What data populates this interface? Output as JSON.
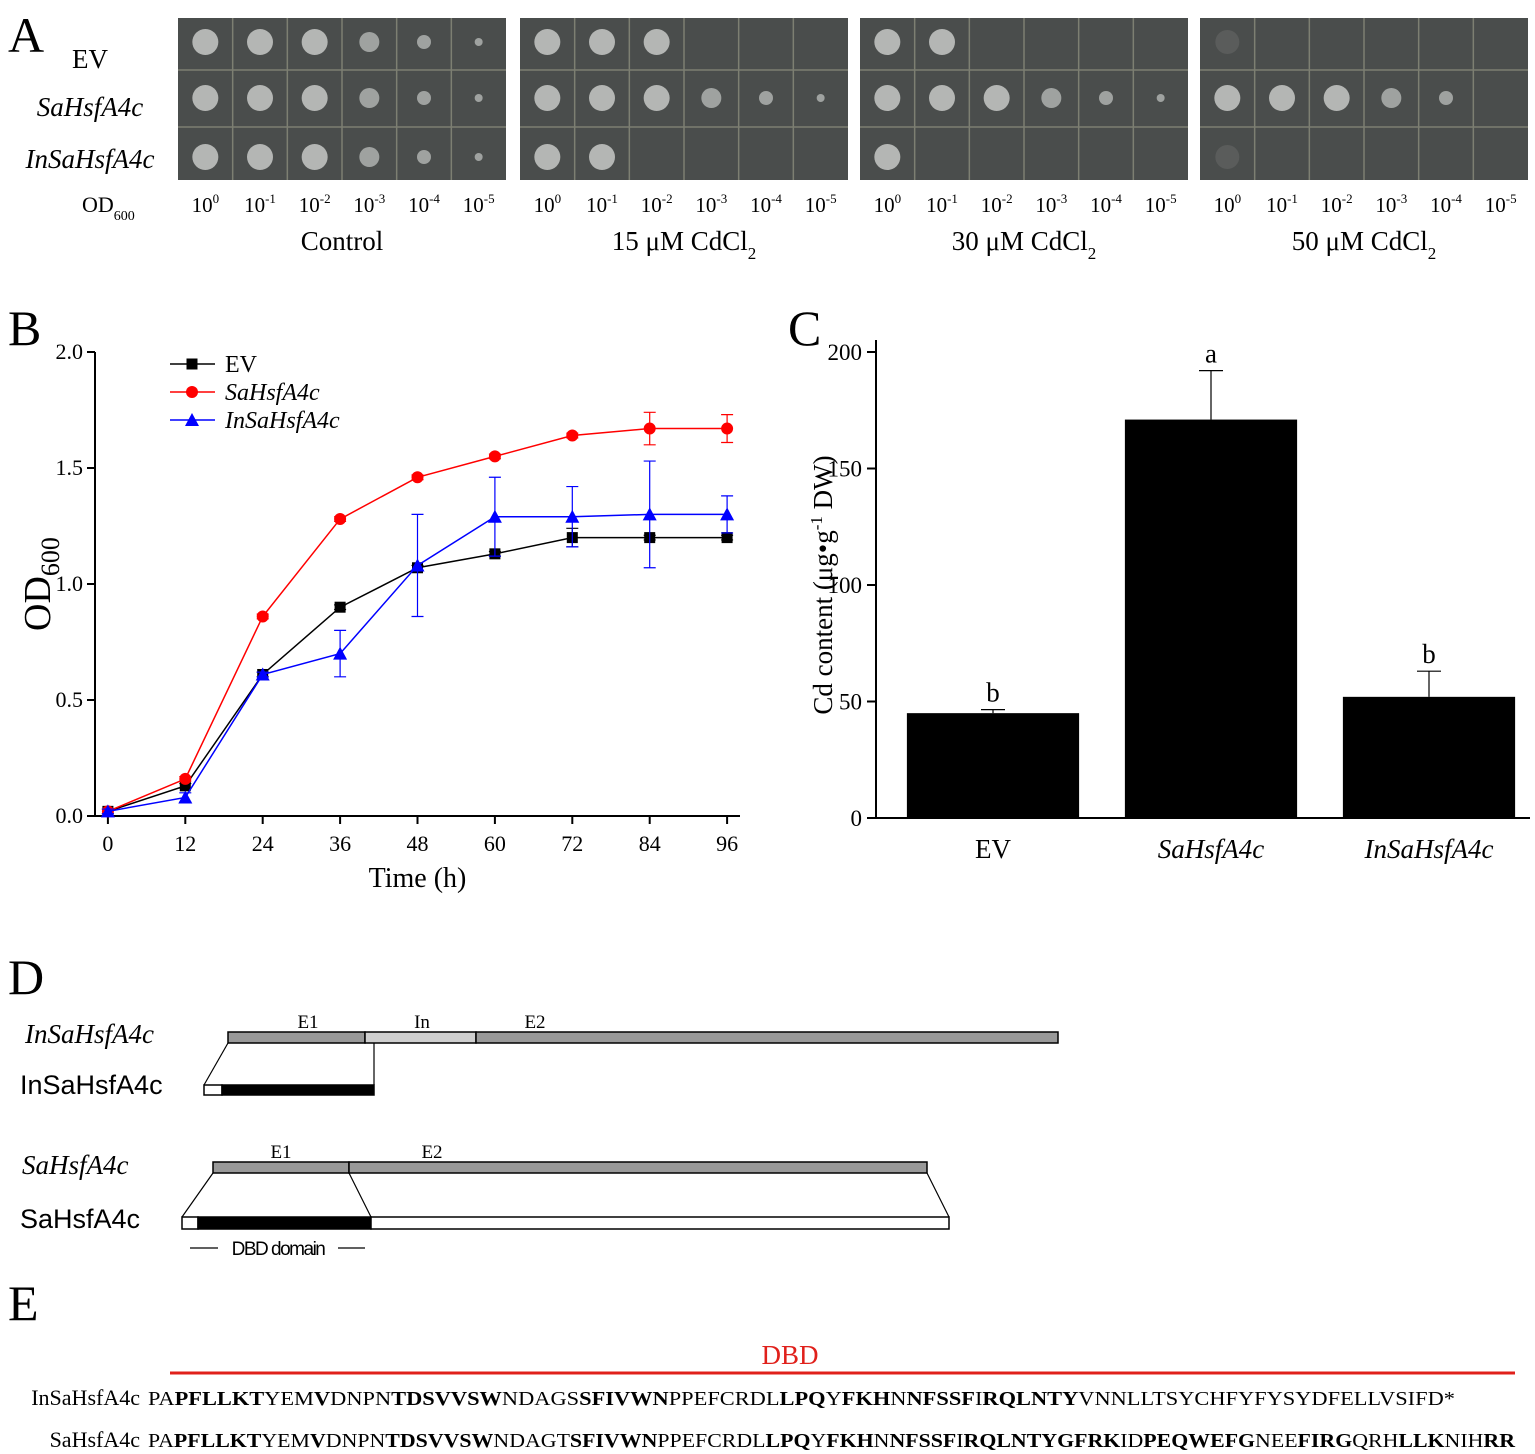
{
  "panel_a": {
    "label": "A",
    "rows": [
      {
        "text": "EV",
        "italic": false
      },
      {
        "text": "SaHsfA4c",
        "italic": true
      },
      {
        "text": "InSaHsfA4c",
        "italic": true
      }
    ],
    "od_label": {
      "main": "OD",
      "sub": "600"
    },
    "dilutions": [
      {
        "base": "10",
        "exp": "0"
      },
      {
        "base": "10",
        "exp": "-1"
      },
      {
        "base": "10",
        "exp": "-2"
      },
      {
        "base": "10",
        "exp": "-3"
      },
      {
        "base": "10",
        "exp": "-4"
      },
      {
        "base": "10",
        "exp": "-5"
      }
    ],
    "conditions": [
      {
        "text": "Control"
      },
      {
        "text": "15 μM CdCl",
        "sub": "2"
      },
      {
        "text": "30 μM CdCl",
        "sub": "2"
      },
      {
        "text": "50 μM CdCl",
        "sub": "2"
      }
    ]
  },
  "chart_data": [
    {
      "panel": "B",
      "type": "line",
      "x": [
        0,
        12,
        24,
        36,
        48,
        60,
        72,
        84,
        96
      ],
      "xlim": [
        -2,
        98
      ],
      "xticks": [
        0,
        12,
        24,
        36,
        48,
        60,
        72,
        84,
        96
      ],
      "ylim": [
        0,
        2
      ],
      "yticks": [
        {
          "value": 0,
          "label": "0.0"
        },
        0.5,
        {
          "value": 1,
          "label": "1.0"
        },
        1.5,
        {
          "value": 2,
          "label": "2.0"
        }
      ],
      "xlabel": "Time (h)",
      "ylabel": {
        "main": "OD",
        "sub": "600"
      },
      "grid": false,
      "legend": "top-left",
      "series": [
        {
          "name": "EV",
          "italic": false,
          "color": "#000000",
          "marker": "square",
          "values": [
            0.02,
            0.13,
            0.61,
            0.9,
            1.07,
            1.13,
            1.2,
            1.2,
            1.2
          ],
          "errors": [
            0.01,
            0.01,
            0.01,
            0.01,
            0.01,
            0.01,
            0.04,
            0.01,
            0.01
          ]
        },
        {
          "name": "SaHsfA4c",
          "italic": true,
          "color": "#ff0000",
          "marker": "circle",
          "values": [
            0.02,
            0.16,
            0.86,
            1.28,
            1.46,
            1.55,
            1.64,
            1.67,
            1.67
          ],
          "errors": [
            0.01,
            0.01,
            0.01,
            0.01,
            0.01,
            0.01,
            0.01,
            0.07,
            0.06
          ]
        },
        {
          "name": "InSaHsfA4c",
          "italic": true,
          "color": "#0000ff",
          "marker": "triangle",
          "values": [
            0.02,
            0.08,
            0.61,
            0.7,
            1.08,
            1.29,
            1.29,
            1.3,
            1.3
          ],
          "errors": [
            0.01,
            0.02,
            0.01,
            0.1,
            0.22,
            0.17,
            0.13,
            0.23,
            0.08
          ]
        }
      ]
    },
    {
      "panel": "C",
      "type": "bar",
      "categories": [
        "EV",
        "SaHsfA4c",
        "InSaHsfA4c"
      ],
      "categories_italic": [
        false,
        true,
        true
      ],
      "values": [
        45,
        171,
        52
      ],
      "errors": [
        1.5,
        21,
        11
      ],
      "annotations": [
        "b",
        "a",
        "b"
      ],
      "color": "#000000",
      "ylim": [
        0,
        200
      ],
      "yticks": [
        0,
        50,
        100,
        150,
        200
      ],
      "grid": false,
      "ylabel": {
        "before": "Cd content (μg•g",
        "sup": "-1",
        "after": " DW)"
      }
    }
  ],
  "panel_d": {
    "label": "D",
    "in_gene": {
      "name": "InSaHsfA4c",
      "exons": [
        "E1",
        "In",
        "E2"
      ]
    },
    "in_protein": "InSaHsfA4c",
    "sa_gene": {
      "name": "SaHsfA4c",
      "exons": [
        "E1",
        "E2"
      ]
    },
    "sa_protein": "SaHsfA4c",
    "domain": "DBD domain"
  },
  "panel_e": {
    "label": "E",
    "domain": "DBD",
    "rows": [
      {
        "name": "InSaHsfA4c",
        "segments": [
          {
            "text": "PA",
            "bold": false
          },
          {
            "text": "PFLLKT",
            "bold": true
          },
          {
            "text": "YEM",
            "bold": false
          },
          {
            "text": "V",
            "bold": true
          },
          {
            "text": "DNPN",
            "bold": false
          },
          {
            "text": "TDSVVSW",
            "bold": true
          },
          {
            "text": "NDAGS",
            "bold": false
          },
          {
            "text": "SFIVWN",
            "bold": true
          },
          {
            "text": "PPEFCRDL",
            "bold": false
          },
          {
            "text": "LPQ",
            "bold": true
          },
          {
            "text": "Y",
            "bold": false
          },
          {
            "text": "FKH",
            "bold": true
          },
          {
            "text": "N",
            "bold": false
          },
          {
            "text": "NFSSF",
            "bold": true
          },
          {
            "text": "I",
            "bold": false
          },
          {
            "text": "RQLNTY",
            "bold": true
          },
          {
            "text": "VNNLLTSYCHFYFYSYDFELLVSIFD*",
            "bold": false
          }
        ]
      },
      {
        "name": "SaHsfA4c",
        "segments": [
          {
            "text": "PA",
            "bold": false
          },
          {
            "text": "PFLLKT",
            "bold": true
          },
          {
            "text": "YEM",
            "bold": false
          },
          {
            "text": "V",
            "bold": true
          },
          {
            "text": "DNPN",
            "bold": false
          },
          {
            "text": "TDSVVSW",
            "bold": true
          },
          {
            "text": "NDAGT",
            "bold": false
          },
          {
            "text": "SFIVWN",
            "bold": true
          },
          {
            "text": "PPEFCRDL",
            "bold": false
          },
          {
            "text": "LPQ",
            "bold": true
          },
          {
            "text": "Y",
            "bold": false
          },
          {
            "text": "FKH",
            "bold": true
          },
          {
            "text": "N",
            "bold": false
          },
          {
            "text": "NFSSF",
            "bold": true
          },
          {
            "text": "I",
            "bold": false
          },
          {
            "text": "RQLNTY",
            "bold": true
          },
          {
            "text": "GFRK",
            "bold": true
          },
          {
            "text": "ID",
            "bold": false
          },
          {
            "text": "PEQWEFG",
            "bold": true
          },
          {
            "text": "NEE",
            "bold": false
          },
          {
            "text": "FIRG",
            "bold": true
          },
          {
            "text": "QRH",
            "bold": false
          },
          {
            "text": "LLK",
            "bold": true
          },
          {
            "text": "NIH",
            "bold": false
          },
          {
            "text": "RR",
            "bold": true
          }
        ]
      }
    ]
  }
}
